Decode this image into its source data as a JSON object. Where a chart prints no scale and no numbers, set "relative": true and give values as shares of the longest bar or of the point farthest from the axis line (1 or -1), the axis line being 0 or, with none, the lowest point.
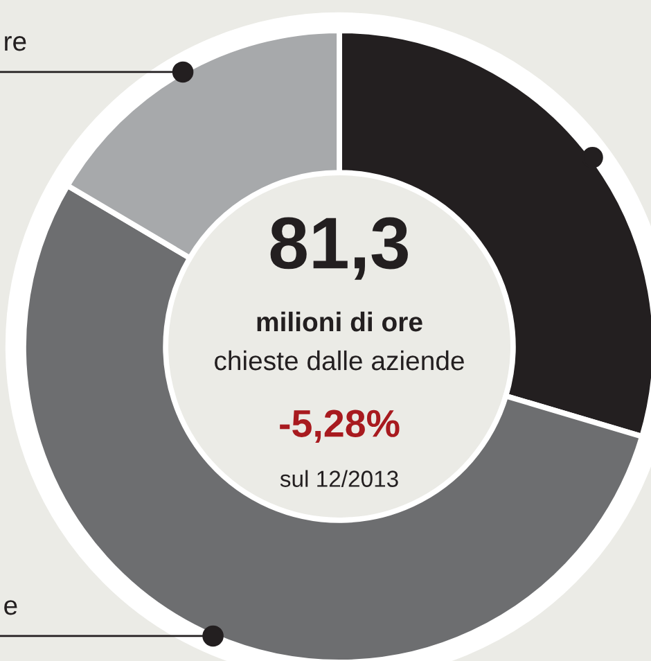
{
  "chart_data": {
    "type": "donut",
    "categories": [
      null,
      "e",
      "re"
    ],
    "values": [
      29.6,
      53.9,
      16.5
    ],
    "colors": [
      "#231f20",
      "#6d6e70",
      "#a7a9ab"
    ],
    "relative": true,
    "annotations": [
      "81,3",
      "milioni di ore",
      "chieste dalle aziende",
      "-5,28%",
      "sul 12/2013"
    ]
  }
}
